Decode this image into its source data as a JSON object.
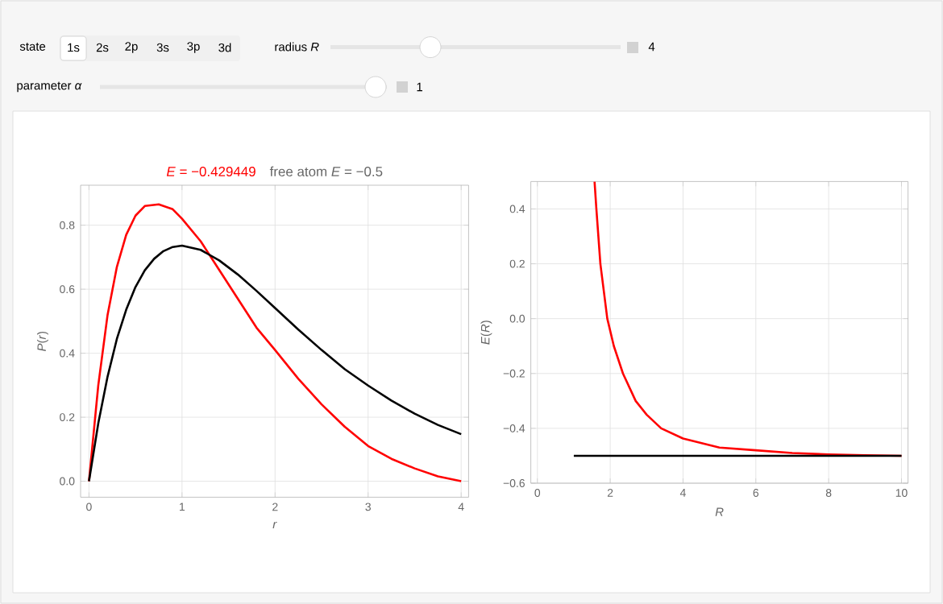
{
  "chart_data": [
    {
      "type": "other",
      "annotations": [
        "state",
        "1s",
        "2s",
        "2p",
        "3s",
        "3p",
        "3d",
        "radius *R*",
        "4",
        "parameter *α*",
        "1"
      ]
    },
    {
      "type": "line",
      "title": "*E* = −0.429449",
      "subtitle": "free atom *E* = −0.5",
      "xlabel": "r",
      "ylabel": "*P*(*r*)",
      "xlim": [
        -0.09,
        4.08
      ],
      "ylim": [
        -0.05,
        0.925
      ],
      "xticks": [
        0,
        1,
        2,
        3,
        4
      ],
      "yticks": [
        {
          "value": 0,
          "label": "0.0"
        },
        0.2,
        0.4,
        0.6,
        0.8
      ],
      "grid": true,
      "series": [
        {
          "color": "#ff0000",
          "x": [
            0,
            0.1,
            0.2,
            0.3,
            0.4,
            0.5,
            0.6,
            0.75,
            0.9,
            1,
            1.2,
            1.4,
            1.6,
            1.8,
            2,
            2.25,
            2.5,
            2.75,
            3,
            3.25,
            3.5,
            3.75,
            4
          ],
          "values": [
            0,
            0.3,
            0.52,
            0.67,
            0.77,
            0.83,
            0.86,
            0.865,
            0.85,
            0.82,
            0.75,
            0.66,
            0.57,
            0.48,
            0.41,
            0.32,
            0.24,
            0.17,
            0.11,
            0.07,
            0.04,
            0.015,
            0
          ]
        },
        {
          "color": "#000000",
          "x": [
            0,
            0.1,
            0.2,
            0.3,
            0.4,
            0.5,
            0.6,
            0.7,
            0.8,
            0.9,
            1,
            1.2,
            1.4,
            1.6,
            1.8,
            2,
            2.25,
            2.5,
            2.75,
            3,
            3.25,
            3.5,
            3.75,
            4
          ],
          "values": [
            0,
            0.181,
            0.327,
            0.445,
            0.536,
            0.607,
            0.659,
            0.695,
            0.719,
            0.732,
            0.736,
            0.723,
            0.69,
            0.646,
            0.595,
            0.541,
            0.474,
            0.41,
            0.35,
            0.299,
            0.252,
            0.211,
            0.176,
            0.147
          ]
        }
      ]
    },
    {
      "type": "line",
      "xlabel": "R",
      "ylabel": "*E*(*R*)",
      "xlim": [
        -0.18,
        10.18
      ],
      "ylim": [
        -0.6,
        0.5
      ],
      "xticks": [
        0,
        2,
        4,
        6,
        8,
        10
      ],
      "yticks": [
        {
          "value": -0.6,
          "label": "−0.6"
        },
        {
          "value": -0.4,
          "label": "−0.4"
        },
        {
          "value": -0.2,
          "label": "−0.2"
        },
        {
          "value": 0,
          "label": "0.0"
        },
        0.2,
        0.4
      ],
      "grid": true,
      "series": [
        {
          "color": "#ff0000",
          "x": [
            1.57,
            1.62,
            1.73,
            1.92,
            2.1,
            2.35,
            2.7,
            3.0,
            3.4,
            4,
            5,
            6,
            7,
            8,
            9,
            10
          ],
          "values": [
            0.5,
            0.4,
            0.2,
            0,
            -0.1,
            -0.2,
            -0.3,
            -0.35,
            -0.4,
            -0.437,
            -0.47,
            -0.48,
            -0.49,
            -0.495,
            -0.498,
            -0.5
          ]
        },
        {
          "color": "#000000",
          "x": [
            1,
            10
          ],
          "values": [
            -0.5,
            -0.5
          ]
        }
      ]
    }
  ]
}
